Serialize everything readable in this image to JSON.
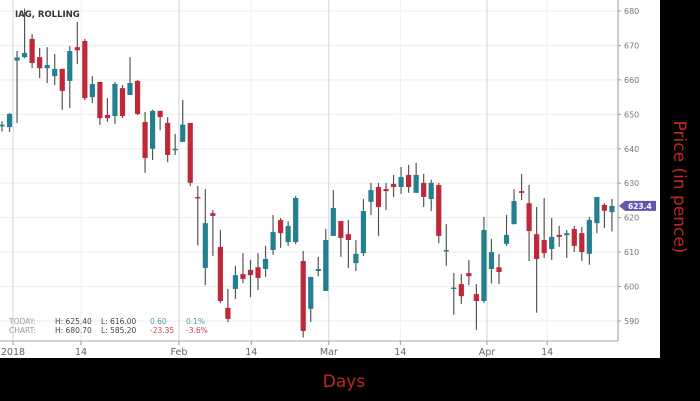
{
  "chart_data": {
    "type": "candlestick",
    "title": "IAG, ROLLING",
    "xlabel": "Days",
    "ylabel": "Price (in pence)",
    "ylim": [
      583,
      683
    ],
    "y_ticks": [
      590,
      600,
      610,
      620,
      630,
      640,
      650,
      660,
      670,
      680
    ],
    "x_tick_labels": [
      "2018",
      "14",
      "Feb",
      "14",
      "Mar",
      "14",
      "Apr",
      "14"
    ],
    "grid": true,
    "colors": {
      "up": "#23808f",
      "down": "#c0283a",
      "last_price": "#6656b0",
      "axis_title": "#c0281e"
    },
    "last_price": "623.4",
    "ohlc_fields": [
      "open",
      "high",
      "low",
      "close"
    ],
    "candles": [
      [
        646.5,
        648,
        645,
        647
      ],
      [
        646.3,
        650.4,
        644.9,
        650.1
      ],
      [
        665.6,
        668.4,
        647.5,
        666.5
      ],
      [
        666.6,
        680.7,
        666.3,
        667.8
      ],
      [
        671.9,
        673.3,
        663.4,
        664.9
      ],
      [
        666.6,
        669.3,
        660.5,
        663.4
      ],
      [
        663.4,
        669.5,
        659.1,
        664.3
      ],
      [
        661.1,
        667.5,
        658.5,
        663.2
      ],
      [
        663.2,
        663.2,
        651.3,
        656.8
      ],
      [
        659.7,
        669.8,
        651.8,
        668.4
      ],
      [
        669.5,
        676.8,
        664.6,
        668.6
      ],
      [
        671.3,
        671.9,
        654.1,
        654.7
      ],
      [
        655,
        661.1,
        653.3,
        658.8
      ],
      [
        659.4,
        659.4,
        646.9,
        648.9
      ],
      [
        649.8,
        654.7,
        647.8,
        648.9
      ],
      [
        649.5,
        659.4,
        647.2,
        658.8
      ],
      [
        657.6,
        658.5,
        648.9,
        649.5
      ],
      [
        655.6,
        666.6,
        655.6,
        659.1
      ],
      [
        659.7,
        660,
        649.8,
        650.1
      ],
      [
        647.8,
        650.7,
        633,
        637.3
      ],
      [
        640,
        651.3,
        636.7,
        651
      ],
      [
        651,
        651,
        645.4,
        649.2
      ],
      [
        647.5,
        649.2,
        636.1,
        638.2
      ],
      [
        639.7,
        644.3,
        638.2,
        640
      ],
      [
        642,
        654.2,
        642,
        647
      ],
      [
        647.5,
        647.5,
        629.2,
        630.1
      ],
      [
        626,
        629.2,
        612,
        625.7
      ],
      [
        605.4,
        628.3,
        600.4,
        618.4
      ],
      [
        621.3,
        622.2,
        608.9,
        620.5
      ],
      [
        611.5,
        616.4,
        595.2,
        595.8
      ],
      [
        593.8,
        599.3,
        589.7,
        590.6
      ],
      [
        599.3,
        606,
        596.4,
        603.3
      ],
      [
        603.6,
        609.7,
        601,
        602.2
      ],
      [
        604.8,
        607.7,
        596.9,
        603.3
      ],
      [
        605.6,
        609.7,
        599,
        602.5
      ],
      [
        605.1,
        611.8,
        602.8,
        608
      ],
      [
        610.6,
        620.8,
        609.2,
        615.8
      ],
      [
        619.3,
        619.9,
        611.2,
        615.5
      ],
      [
        612.9,
        619,
        611.8,
        617.6
      ],
      [
        612.9,
        626.3,
        612.3,
        625.7
      ],
      [
        607.4,
        610.3,
        585.2,
        587.1
      ],
      [
        593.5,
        602.8,
        589.7,
        602.8
      ],
      [
        604.5,
        608.6,
        603,
        605.1
      ],
      [
        598.7,
        616.7,
        598.7,
        613.5
      ],
      [
        614.7,
        628,
        614.7,
        622.8
      ],
      [
        619,
        619,
        608.6,
        614.1
      ],
      [
        615.2,
        619.3,
        605.4,
        613.5
      ],
      [
        606.8,
        613.5,
        604.5,
        609.5
      ],
      [
        609.7,
        625.4,
        608.9,
        621.9
      ],
      [
        624.6,
        630.1,
        620.8,
        628
      ],
      [
        628.9,
        630.1,
        614.7,
        623.1
      ],
      [
        628.3,
        630.1,
        622.2,
        627.7
      ],
      [
        629.8,
        632.4,
        626,
        628.9
      ],
      [
        628.9,
        634.7,
        626.9,
        631.8
      ],
      [
        632.4,
        635.3,
        627.2,
        628.9
      ],
      [
        627.2,
        635.9,
        627.2,
        632.4
      ],
      [
        630.1,
        632.7,
        623.1,
        626
      ],
      [
        625.4,
        631,
        621.9,
        630.1
      ],
      [
        629.5,
        630.1,
        612.6,
        614.7
      ],
      [
        610.3,
        618.1,
        606,
        610.6
      ],
      [
        599.6,
        603.9,
        591.8,
        599.7
      ],
      [
        600.7,
        603.6,
        594.9,
        597.2
      ],
      [
        603.9,
        607.7,
        600.4,
        603
      ],
      [
        597.8,
        600.7,
        587.4,
        595.8
      ],
      [
        595.8,
        620.2,
        595.2,
        616.4
      ],
      [
        605.1,
        613.8,
        600.9,
        610
      ],
      [
        605.6,
        609.5,
        600.7,
        604.2
      ],
      [
        612.4,
        620.8,
        611.8,
        615
      ],
      [
        618.1,
        628.3,
        618.1,
        624.8
      ],
      [
        627.7,
        632.7,
        625.1,
        627.2
      ],
      [
        624.2,
        629.5,
        607.4,
        616.1
      ],
      [
        615.2,
        623.1,
        592.4,
        608
      ],
      [
        613.5,
        625.7,
        608.3,
        609.7
      ],
      [
        610.9,
        619.9,
        607.7,
        614.4
      ],
      [
        615,
        617.6,
        611.5,
        614.4
      ],
      [
        614.9,
        616.4,
        608.3,
        615.5
      ],
      [
        616.7,
        617.6,
        610,
        611.8
      ],
      [
        615.5,
        617.3,
        607.4,
        610
      ],
      [
        609.5,
        620.2,
        606.3,
        619.3
      ],
      [
        618.4,
        626,
        615.5,
        626
      ],
      [
        623.7,
        624.2,
        617,
        622
      ],
      [
        621.6,
        625.4,
        616,
        623.4
      ]
    ],
    "stats": {
      "today": {
        "label": "TODAY:",
        "high": "H: 625.40",
        "low": "L: 616.00",
        "change": "0.60",
        "change_pct": "0.1%"
      },
      "chart": {
        "label": "CHART:",
        "high": "H: 680.70",
        "low": "L: 585.20",
        "change": "-23.35",
        "change_pct": "-3.6%"
      }
    }
  }
}
